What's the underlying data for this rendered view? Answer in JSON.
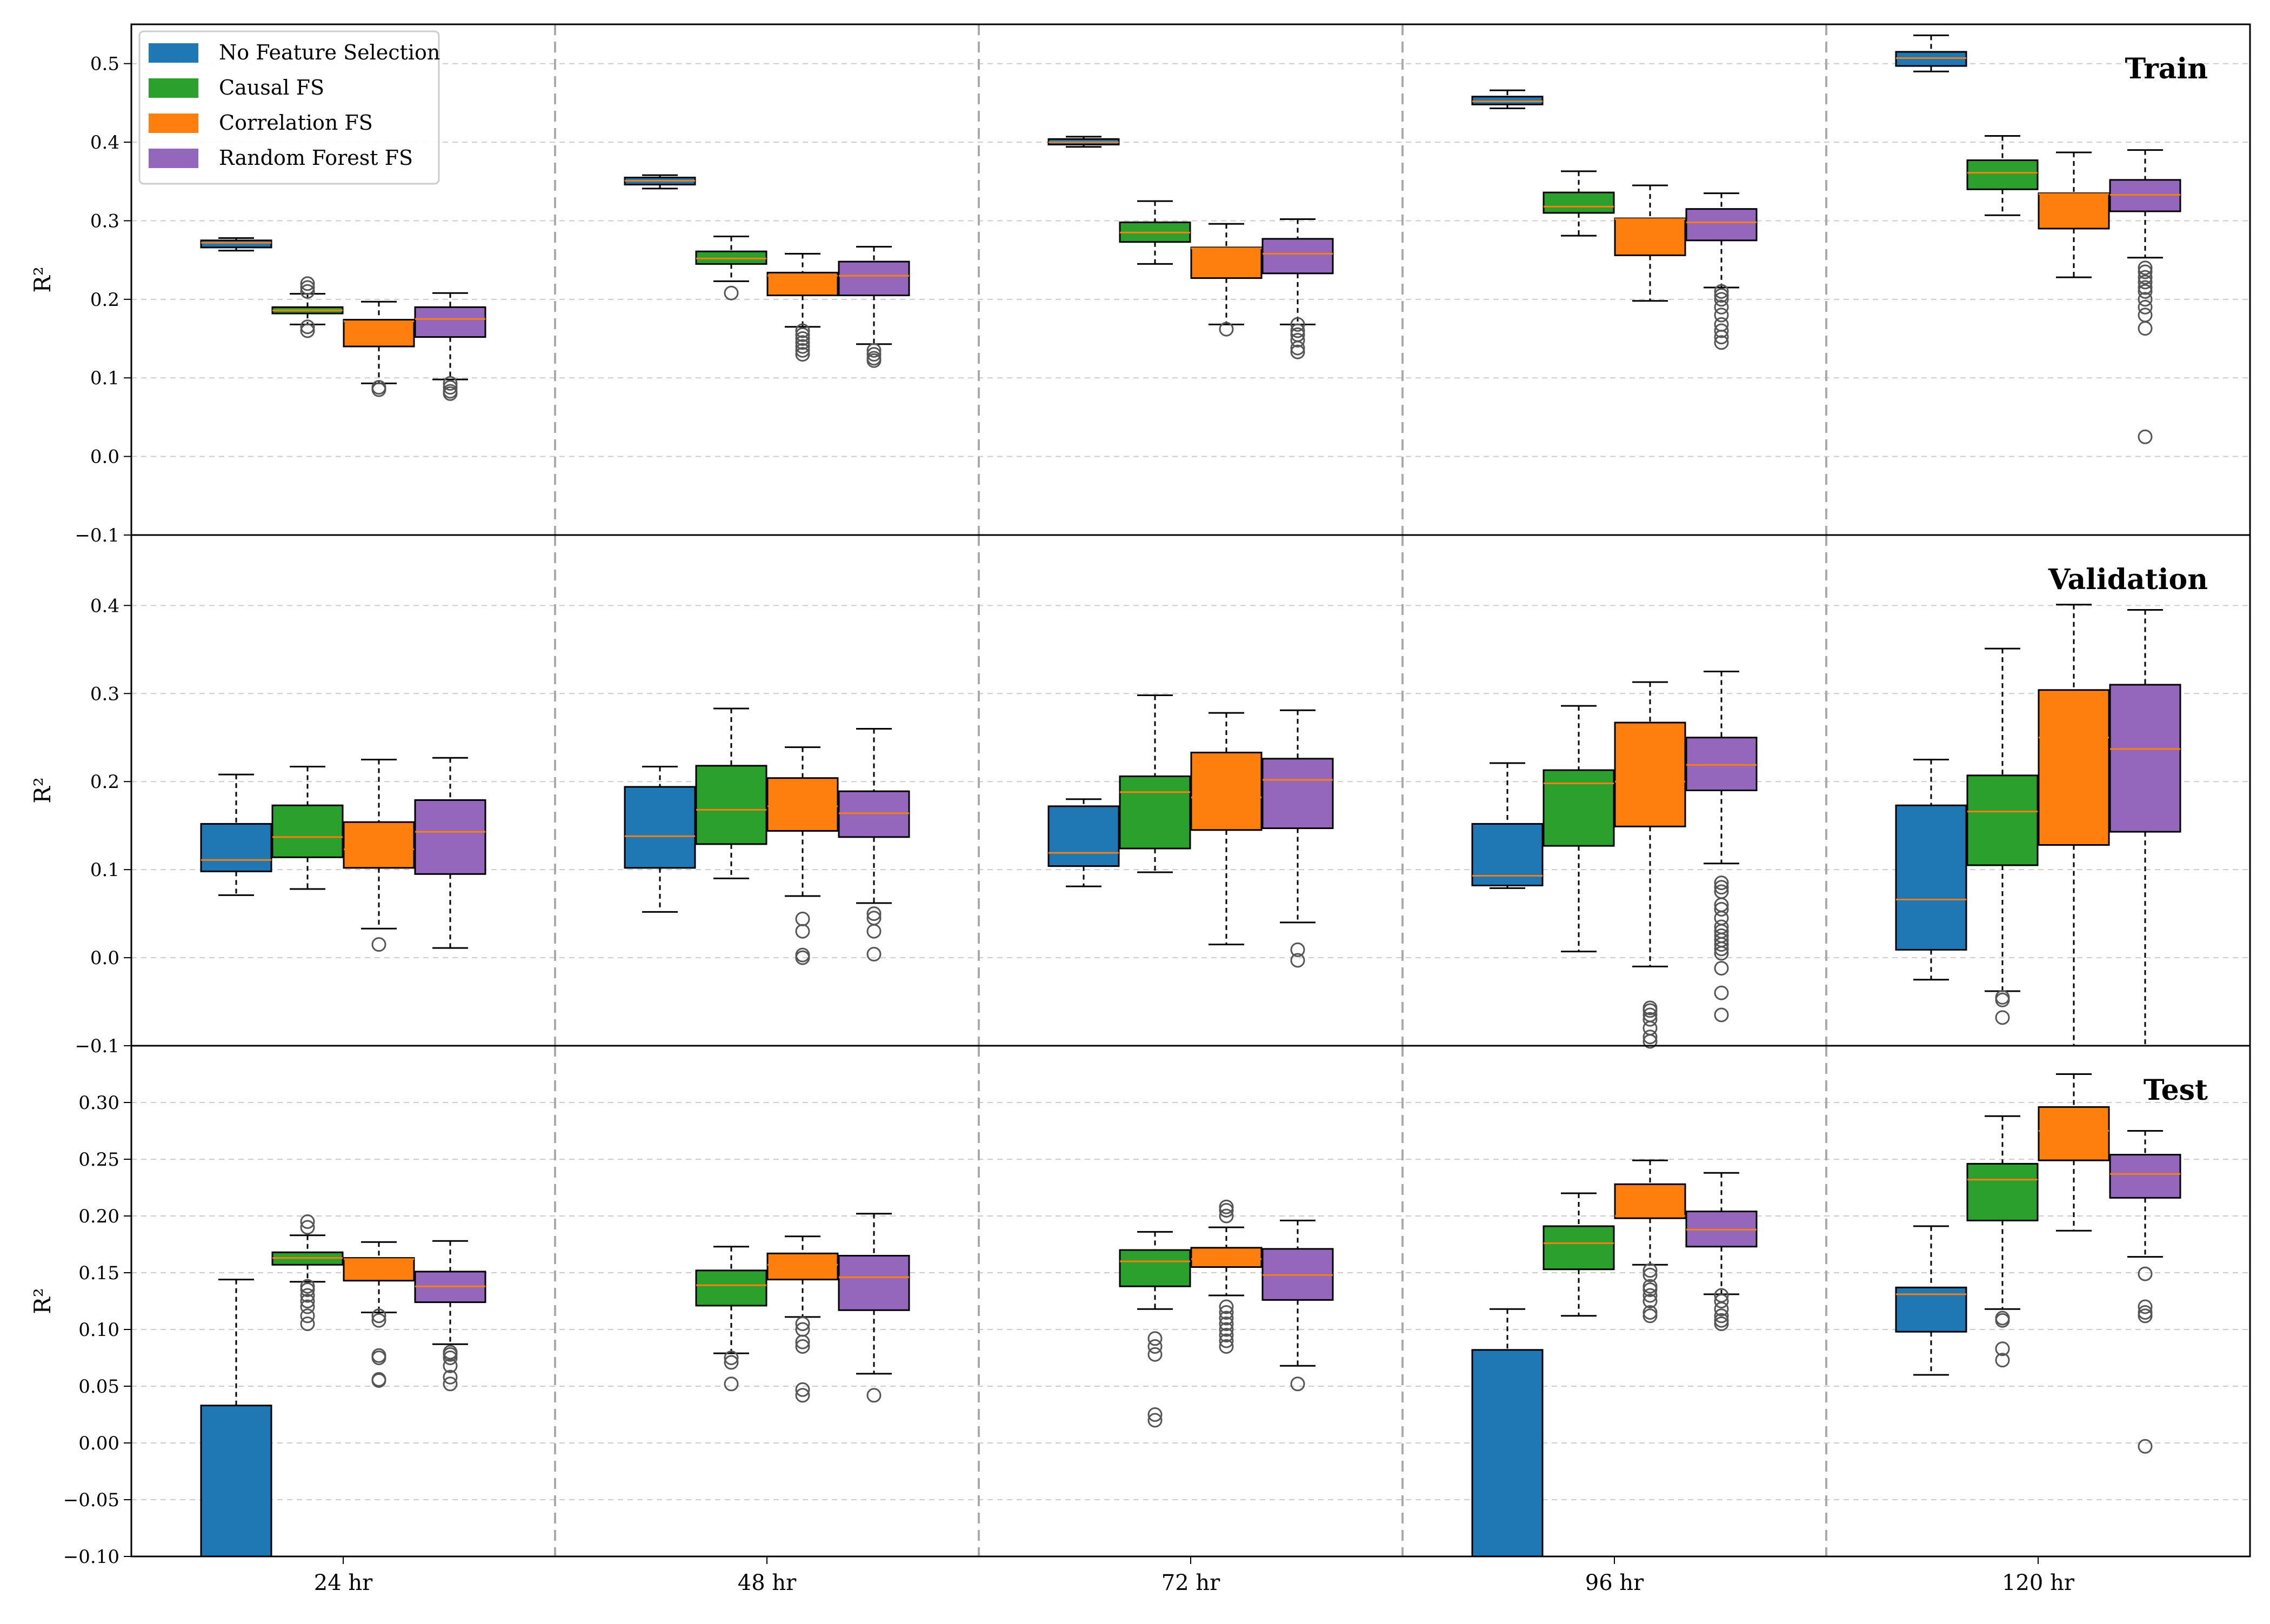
{
  "chart_data": {
    "type": "boxplot",
    "categories": [
      "24 hr",
      "48 hr",
      "72 hr",
      "96 hr",
      "120 hr"
    ],
    "series_names": [
      "No Feature Selection",
      "Causal FS",
      "Correlation FS",
      "Random Forest FS"
    ],
    "colors": {
      "No Feature Selection": "#1f77b4",
      "Causal FS": "#2ca02c",
      "Correlation FS": "#ff7f0e",
      "Random Forest FS": "#9467bd",
      "median": "#ff7f0e",
      "grid": "#cccccc",
      "separator": "#aaaaaa"
    },
    "ylabel": "R²",
    "legend_location": "upper-left of top panel",
    "panels": [
      {
        "title": "Train",
        "ylim": [
          -0.1,
          0.55
        ],
        "yticks": [
          "0.5",
          "0.4",
          "0.3",
          "0.2",
          "0.1",
          "0.0",
          "−0.1"
        ],
        "ytick_values": [
          0.5,
          0.4,
          0.3,
          0.2,
          0.1,
          0.0,
          -0.1
        ],
        "boxes": [
          [
            {
              "lw": 0.262,
              "q1": 0.266,
              "med": 0.272,
              "q3": 0.275,
              "uw": 0.278,
              "out": []
            },
            {
              "lw": 0.168,
              "q1": 0.182,
              "med": 0.186,
              "q3": 0.19,
              "uw": 0.207,
              "out": [
                0.21,
                0.215,
                0.22,
                0.165,
                0.16
              ]
            },
            {
              "lw": 0.093,
              "q1": 0.14,
              "med": 0.172,
              "q3": 0.174,
              "uw": 0.197,
              "out": [
                0.088,
                0.085
              ]
            },
            {
              "lw": 0.098,
              "q1": 0.152,
              "med": 0.175,
              "q3": 0.19,
              "uw": 0.208,
              "out": [
                0.093,
                0.088,
                0.083,
                0.08
              ]
            }
          ],
          [
            {
              "lw": 0.341,
              "q1": 0.346,
              "med": 0.351,
              "q3": 0.355,
              "uw": 0.358,
              "out": []
            },
            {
              "lw": 0.223,
              "q1": 0.245,
              "med": 0.252,
              "q3": 0.261,
              "uw": 0.28,
              "out": [
                0.208
              ]
            },
            {
              "lw": 0.165,
              "q1": 0.205,
              "med": 0.23,
              "q3": 0.234,
              "uw": 0.258,
              "out": [
                0.16,
                0.155,
                0.15,
                0.145,
                0.14,
                0.135,
                0.13
              ]
            },
            {
              "lw": 0.143,
              "q1": 0.205,
              "med": 0.23,
              "q3": 0.248,
              "uw": 0.267,
              "out": [
                0.135,
                0.13,
                0.125,
                0.122
              ]
            }
          ],
          [
            {
              "lw": 0.394,
              "q1": 0.397,
              "med": 0.4,
              "q3": 0.404,
              "uw": 0.407,
              "out": []
            },
            {
              "lw": 0.245,
              "q1": 0.273,
              "med": 0.285,
              "q3": 0.298,
              "uw": 0.325,
              "out": []
            },
            {
              "lw": 0.168,
              "q1": 0.227,
              "med": 0.265,
              "q3": 0.266,
              "uw": 0.296,
              "out": [
                0.162
              ]
            },
            {
              "lw": 0.168,
              "q1": 0.233,
              "med": 0.258,
              "q3": 0.277,
              "uw": 0.302,
              "out": [
                0.168,
                0.16,
                0.155,
                0.148,
                0.138,
                0.133
              ]
            }
          ],
          [
            {
              "lw": 0.443,
              "q1": 0.448,
              "med": 0.452,
              "q3": 0.458,
              "uw": 0.466,
              "out": []
            },
            {
              "lw": 0.281,
              "q1": 0.31,
              "med": 0.318,
              "q3": 0.336,
              "uw": 0.363,
              "out": []
            },
            {
              "lw": 0.198,
              "q1": 0.256,
              "med": 0.302,
              "q3": 0.303,
              "uw": 0.345,
              "out": []
            },
            {
              "lw": 0.215,
              "q1": 0.275,
              "med": 0.298,
              "q3": 0.315,
              "uw": 0.335,
              "out": [
                0.21,
                0.205,
                0.2,
                0.19,
                0.18,
                0.168,
                0.16,
                0.152,
                0.145
              ]
            }
          ],
          [
            {
              "lw": 0.49,
              "q1": 0.497,
              "med": 0.507,
              "q3": 0.515,
              "uw": 0.536,
              "out": []
            },
            {
              "lw": 0.307,
              "q1": 0.34,
              "med": 0.361,
              "q3": 0.377,
              "uw": 0.408,
              "out": []
            },
            {
              "lw": 0.228,
              "q1": 0.29,
              "med": 0.334,
              "q3": 0.335,
              "uw": 0.387,
              "out": []
            },
            {
              "lw": 0.253,
              "q1": 0.312,
              "med": 0.333,
              "q3": 0.352,
              "uw": 0.39,
              "out": [
                0.24,
                0.235,
                0.228,
                0.222,
                0.215,
                0.21,
                0.2,
                0.19,
                0.18,
                0.163,
                0.025
              ]
            }
          ]
        ]
      },
      {
        "title": "Validation",
        "ylim": [
          -0.1,
          0.48
        ],
        "yticks": [
          "0.4",
          "0.3",
          "0.2",
          "0.1",
          "0.0",
          "−0.1"
        ],
        "ytick_values": [
          0.4,
          0.3,
          0.2,
          0.1,
          0.0,
          -0.1
        ],
        "boxes": [
          [
            {
              "lw": 0.071,
              "q1": 0.098,
              "med": 0.111,
              "q3": 0.152,
              "uw": 0.208,
              "out": []
            },
            {
              "lw": 0.078,
              "q1": 0.114,
              "med": 0.137,
              "q3": 0.173,
              "uw": 0.217,
              "out": []
            },
            {
              "lw": 0.033,
              "q1": 0.102,
              "med": 0.123,
              "q3": 0.154,
              "uw": 0.225,
              "out": [
                0.015
              ]
            },
            {
              "lw": 0.011,
              "q1": 0.095,
              "med": 0.143,
              "q3": 0.179,
              "uw": 0.227,
              "out": []
            }
          ],
          [
            {
              "lw": 0.052,
              "q1": 0.102,
              "med": 0.138,
              "q3": 0.194,
              "uw": 0.217,
              "out": []
            },
            {
              "lw": 0.09,
              "q1": 0.129,
              "med": 0.168,
              "q3": 0.218,
              "uw": 0.283,
              "out": []
            },
            {
              "lw": 0.07,
              "q1": 0.144,
              "med": 0.172,
              "q3": 0.204,
              "uw": 0.239,
              "out": [
                0.044,
                0.03,
                0.003,
                0.0
              ]
            },
            {
              "lw": 0.062,
              "q1": 0.137,
              "med": 0.164,
              "q3": 0.189,
              "uw": 0.26,
              "out": [
                0.05,
                0.045,
                0.03,
                0.004
              ]
            }
          ],
          [
            {
              "lw": 0.081,
              "q1": 0.104,
              "med": 0.119,
              "q3": 0.172,
              "uw": 0.18,
              "out": []
            },
            {
              "lw": 0.097,
              "q1": 0.124,
              "med": 0.188,
              "q3": 0.206,
              "uw": 0.298,
              "out": []
            },
            {
              "lw": 0.015,
              "q1": 0.145,
              "med": 0.182,
              "q3": 0.233,
              "uw": 0.278,
              "out": []
            },
            {
              "lw": 0.04,
              "q1": 0.147,
              "med": 0.202,
              "q3": 0.226,
              "uw": 0.281,
              "out": [
                0.009,
                -0.003
              ]
            }
          ],
          [
            {
              "lw": 0.079,
              "q1": 0.082,
              "med": 0.093,
              "q3": 0.152,
              "uw": 0.221,
              "out": []
            },
            {
              "lw": 0.007,
              "q1": 0.127,
              "med": 0.198,
              "q3": 0.213,
              "uw": 0.286,
              "out": []
            },
            {
              "lw": -0.01,
              "q1": 0.149,
              "med": 0.2,
              "q3": 0.267,
              "uw": 0.313,
              "out": [
                -0.057,
                -0.06,
                -0.065,
                -0.07,
                -0.08,
                -0.09,
                -0.095
              ]
            },
            {
              "lw": 0.107,
              "q1": 0.19,
              "med": 0.219,
              "q3": 0.25,
              "uw": 0.325,
              "out": [
                0.085,
                0.08,
                0.075,
                0.06,
                0.055,
                0.045,
                0.035,
                0.03,
                0.025,
                0.02,
                0.015,
                0.01,
                0.005,
                -0.012,
                -0.04,
                -0.065
              ]
            }
          ],
          [
            {
              "lw": -0.025,
              "q1": 0.009,
              "med": 0.066,
              "q3": 0.173,
              "uw": 0.225,
              "out": []
            },
            {
              "lw": -0.038,
              "q1": 0.105,
              "med": 0.166,
              "q3": 0.207,
              "uw": 0.351,
              "out": [
                -0.045,
                -0.048,
                -0.068
              ]
            },
            {
              "lw": -0.1,
              "q1": 0.128,
              "med": 0.25,
              "q3": 0.304,
              "uw": 0.401,
              "out": []
            },
            {
              "lw": -0.1,
              "q1": 0.143,
              "med": 0.237,
              "q3": 0.31,
              "uw": 0.395,
              "out": []
            }
          ]
        ]
      },
      {
        "title": "Test",
        "ylim": [
          -0.1,
          0.35
        ],
        "yticks": [
          "0.30",
          "0.25",
          "0.20",
          "0.15",
          "0.10",
          "0.05",
          "0.00",
          "−0.05",
          "−0.10"
        ],
        "ytick_values": [
          0.3,
          0.25,
          0.2,
          0.15,
          0.1,
          0.05,
          0.0,
          -0.05,
          -0.1
        ],
        "boxes": [
          [
            {
              "lw": -0.1,
              "q1": -0.1,
              "med": -0.1,
              "q3": 0.033,
              "uw": 0.144,
              "out": []
            },
            {
              "lw": 0.142,
              "q1": 0.157,
              "med": 0.163,
              "q3": 0.168,
              "uw": 0.183,
              "out": [
                0.195,
                0.19,
                0.138,
                0.135,
                0.13,
                0.125,
                0.12,
                0.112,
                0.105
              ]
            },
            {
              "lw": 0.115,
              "q1": 0.143,
              "med": 0.162,
              "q3": 0.163,
              "uw": 0.177,
              "out": [
                0.112,
                0.108,
                0.077,
                0.075,
                0.056,
                0.055
              ]
            },
            {
              "lw": 0.087,
              "q1": 0.124,
              "med": 0.138,
              "q3": 0.151,
              "uw": 0.178,
              "out": [
                0.08,
                0.078,
                0.075,
                0.068,
                0.058,
                0.052
              ]
            }
          ],
          [
            {
              "lw": -0.1,
              "q1": -0.1,
              "med": -0.1,
              "q3": -0.1,
              "uw": -0.1,
              "out": []
            },
            {
              "lw": 0.079,
              "q1": 0.121,
              "med": 0.139,
              "q3": 0.152,
              "uw": 0.173,
              "out": [
                0.075,
                0.071,
                0.052
              ]
            },
            {
              "lw": 0.111,
              "q1": 0.144,
              "med": 0.157,
              "q3": 0.167,
              "uw": 0.182,
              "out": [
                0.105,
                0.1,
                0.089,
                0.085,
                0.047,
                0.042
              ]
            },
            {
              "lw": 0.061,
              "q1": 0.117,
              "med": 0.146,
              "q3": 0.165,
              "uw": 0.202,
              "out": [
                0.042
              ]
            }
          ],
          [
            {
              "lw": -0.1,
              "q1": -0.1,
              "med": -0.1,
              "q3": -0.1,
              "uw": -0.1,
              "out": []
            },
            {
              "lw": 0.118,
              "q1": 0.138,
              "med": 0.16,
              "q3": 0.17,
              "uw": 0.186,
              "out": [
                0.092,
                0.085,
                0.078,
                0.025,
                0.02
              ]
            },
            {
              "lw": 0.13,
              "q1": 0.155,
              "med": 0.162,
              "q3": 0.172,
              "uw": 0.19,
              "out": [
                0.208,
                0.205,
                0.2,
                0.12,
                0.115,
                0.11,
                0.105,
                0.1,
                0.095,
                0.09,
                0.085
              ]
            },
            {
              "lw": 0.068,
              "q1": 0.126,
              "med": 0.148,
              "q3": 0.171,
              "uw": 0.196,
              "out": [
                0.052
              ]
            }
          ],
          [
            {
              "lw": -0.1,
              "q1": -0.1,
              "med": -0.1,
              "q3": 0.082,
              "uw": 0.118,
              "out": []
            },
            {
              "lw": 0.112,
              "q1": 0.153,
              "med": 0.176,
              "q3": 0.191,
              "uw": 0.22,
              "out": []
            },
            {
              "lw": 0.157,
              "q1": 0.198,
              "med": 0.2,
              "q3": 0.228,
              "uw": 0.249,
              "out": [
                0.152,
                0.148,
                0.138,
                0.135,
                0.13,
                0.125,
                0.115,
                0.112
              ]
            },
            {
              "lw": 0.131,
              "q1": 0.173,
              "med": 0.188,
              "q3": 0.204,
              "uw": 0.238,
              "out": [
                0.13,
                0.125,
                0.118,
                0.112,
                0.108,
                0.105
              ]
            }
          ],
          [
            {
              "lw": 0.06,
              "q1": 0.098,
              "med": 0.131,
              "q3": 0.137,
              "uw": 0.191,
              "out": []
            },
            {
              "lw": 0.118,
              "q1": 0.196,
              "med": 0.232,
              "q3": 0.246,
              "uw": 0.288,
              "out": [
                0.11,
                0.108,
                0.083,
                0.073
              ]
            },
            {
              "lw": 0.187,
              "q1": 0.249,
              "med": 0.275,
              "q3": 0.296,
              "uw": 0.325,
              "out": []
            },
            {
              "lw": 0.164,
              "q1": 0.216,
              "med": 0.237,
              "q3": 0.254,
              "uw": 0.275,
              "out": [
                0.149,
                0.12,
                0.115,
                0.112,
                -0.003
              ]
            }
          ]
        ]
      }
    ]
  }
}
